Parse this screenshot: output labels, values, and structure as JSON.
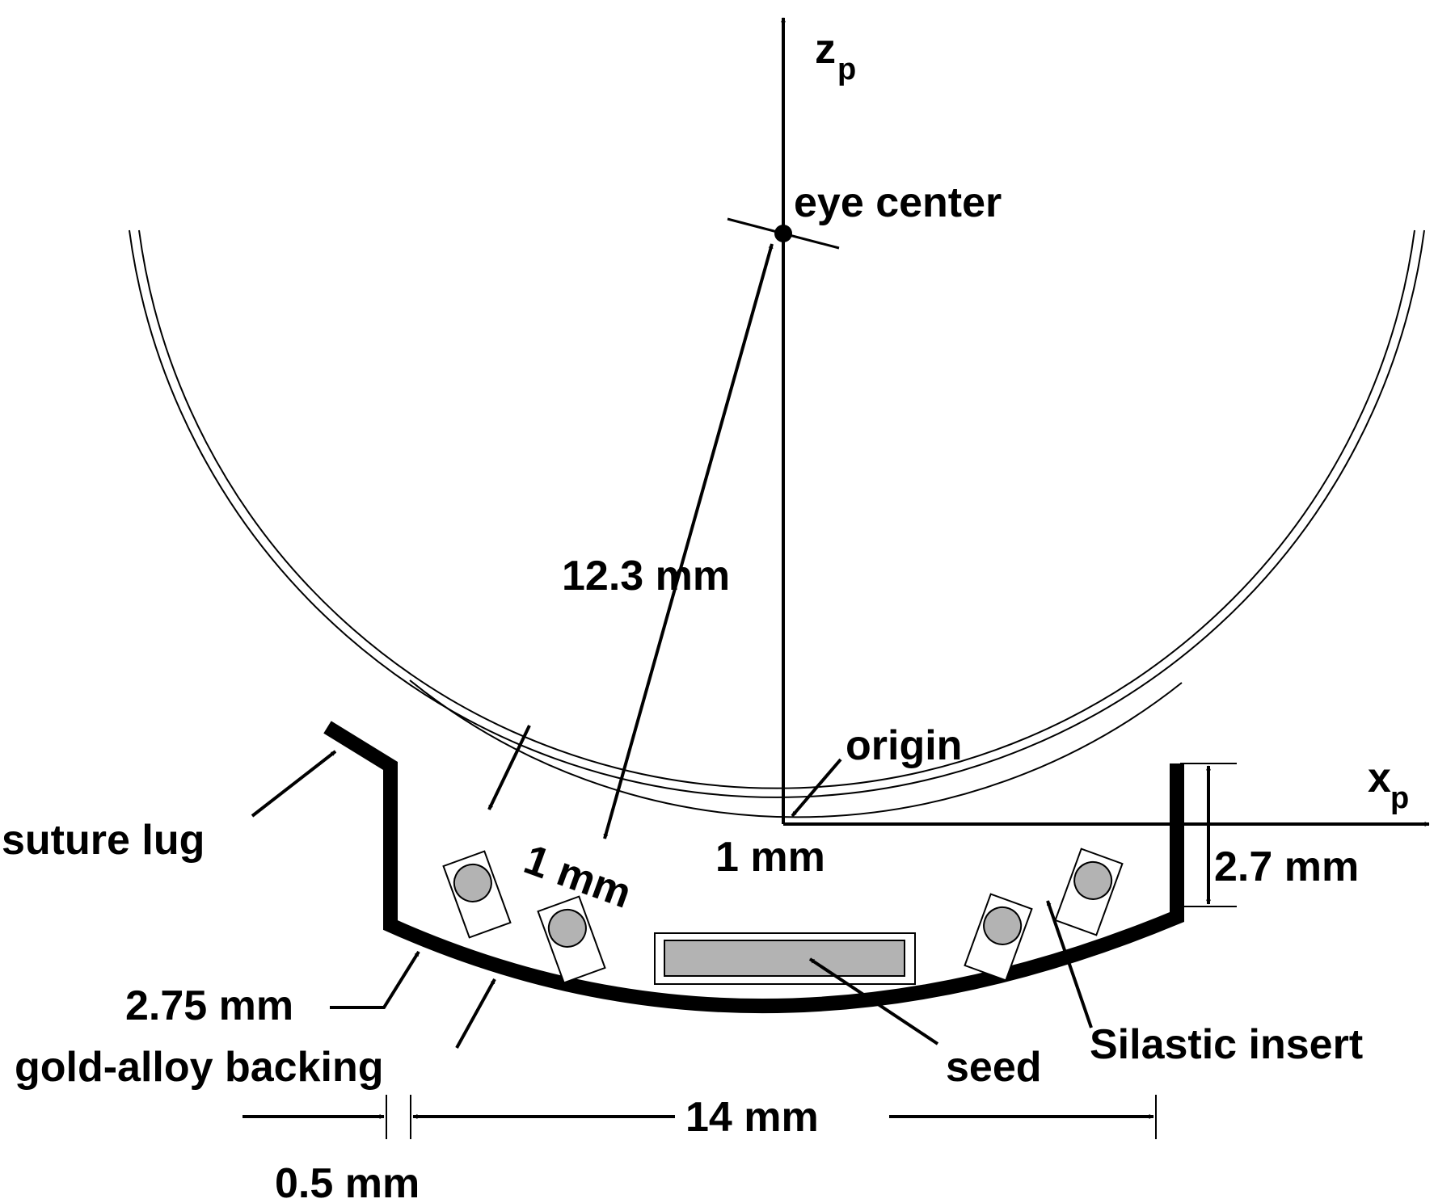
{
  "diagram": {
    "labels": {
      "z_axis": "z",
      "z_axis_sub": "p",
      "x_axis": "x",
      "x_axis_sub": "p",
      "eye_center": "eye center",
      "radius": "12.3 mm",
      "origin": "origin",
      "suture_lug": "suture lug",
      "gap_slanted": "1 mm",
      "gap_center": "1 mm",
      "height": "2.7 mm",
      "thickness": "2.75 mm",
      "backing": "gold-alloy backing",
      "seed": "seed",
      "silastic": "Silastic insert",
      "lip": "0.5 mm",
      "width": "14 mm"
    },
    "colors": {
      "line": "#000000",
      "seed_fill": "#b3b3b3",
      "background": "#ffffff"
    }
  }
}
